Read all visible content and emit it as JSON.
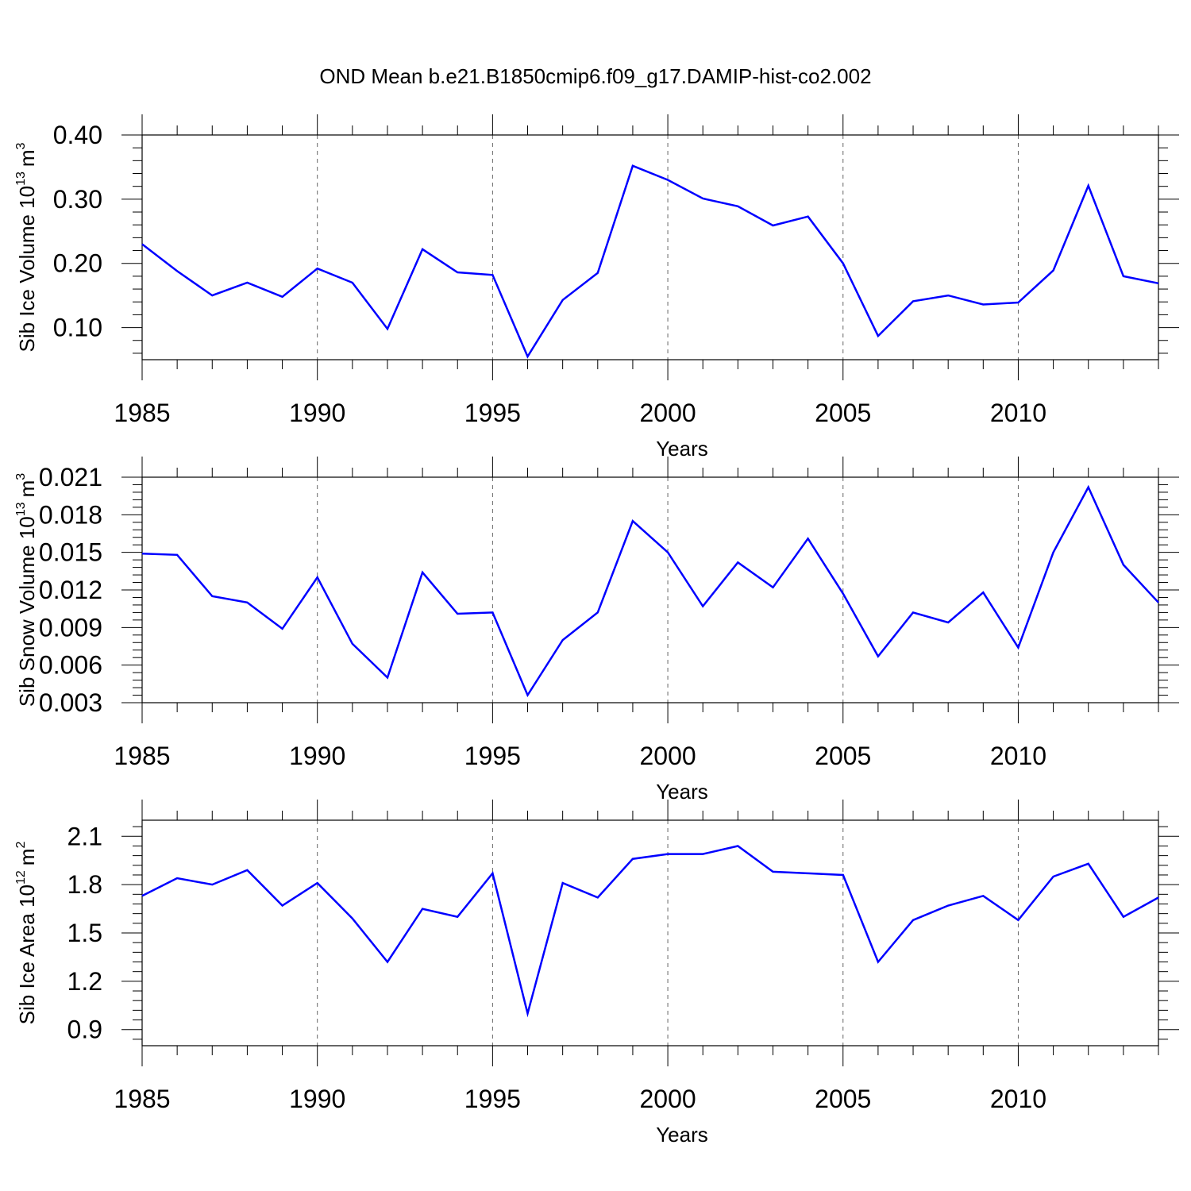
{
  "figure_title": "OND Mean b.e21.B1850cmip6.f09_g17.DAMIP-hist-co2.002",
  "chart_data": [
    {
      "type": "line",
      "title": "",
      "xlabel": "Years",
      "ylabel_text": "Sib Ice Volume 10",
      "ylabel_exp": "13",
      "ylabel_unit": "m",
      "ylabel_unit_exp": "3",
      "xlim": [
        1985,
        2014
      ],
      "ylim": [
        0.05,
        0.4
      ],
      "xticks": [
        1985,
        1990,
        1995,
        2000,
        2005,
        2010
      ],
      "xtick_labels": [
        "1985",
        "1990",
        "1995",
        "2000",
        "2005",
        "2010"
      ],
      "yticks": [
        0.1,
        0.2,
        0.3,
        0.4
      ],
      "ytick_labels": [
        "0.10",
        "0.20",
        "0.30",
        "0.40"
      ],
      "grid": "dashed vertical at major x ticks",
      "x": [
        1985,
        1986,
        1987,
        1988,
        1989,
        1990,
        1991,
        1992,
        1993,
        1994,
        1995,
        1996,
        1997,
        1998,
        1999,
        2000,
        2001,
        2002,
        2003,
        2004,
        2005,
        2006,
        2007,
        2008,
        2009,
        2010,
        2011,
        2012,
        2013,
        2014
      ],
      "series": [
        {
          "name": "Sib Ice Volume",
          "color": "#0000ff",
          "values": [
            0.23,
            0.188,
            0.15,
            0.17,
            0.148,
            0.192,
            0.17,
            0.098,
            0.222,
            0.186,
            0.182,
            0.055,
            0.143,
            0.185,
            0.352,
            0.33,
            0.301,
            0.289,
            0.259,
            0.273,
            0.2,
            0.087,
            0.141,
            0.15,
            0.136,
            0.139,
            0.189,
            0.321,
            0.18,
            0.169
          ]
        }
      ]
    },
    {
      "type": "line",
      "title": "",
      "xlabel": "Years",
      "ylabel_text": "Sib Snow Volume 10",
      "ylabel_exp": "13",
      "ylabel_unit": "m",
      "ylabel_unit_exp": "3",
      "xlim": [
        1985,
        2014
      ],
      "ylim": [
        0.003,
        0.021
      ],
      "xticks": [
        1985,
        1990,
        1995,
        2000,
        2005,
        2010
      ],
      "xtick_labels": [
        "1985",
        "1990",
        "1995",
        "2000",
        "2005",
        "2010"
      ],
      "yticks": [
        0.003,
        0.006,
        0.009,
        0.012,
        0.015,
        0.018,
        0.021
      ],
      "ytick_labels": [
        "0.003",
        "0.006",
        "0.009",
        "0.012",
        "0.015",
        "0.018",
        "0.021"
      ],
      "grid": "dashed vertical at major x ticks",
      "x": [
        1985,
        1986,
        1987,
        1988,
        1989,
        1990,
        1991,
        1992,
        1993,
        1994,
        1995,
        1996,
        1997,
        1998,
        1999,
        2000,
        2001,
        2002,
        2003,
        2004,
        2005,
        2006,
        2007,
        2008,
        2009,
        2010,
        2011,
        2012,
        2013,
        2014
      ],
      "series": [
        {
          "name": "Sib Snow Volume",
          "color": "#0000ff",
          "values": [
            0.0149,
            0.0148,
            0.0115,
            0.011,
            0.0089,
            0.013,
            0.0077,
            0.005,
            0.0134,
            0.0101,
            0.0102,
            0.0036,
            0.008,
            0.0102,
            0.0175,
            0.015,
            0.0107,
            0.0142,
            0.0122,
            0.0161,
            0.0117,
            0.0067,
            0.0102,
            0.0094,
            0.0118,
            0.0074,
            0.015,
            0.0202,
            0.014,
            0.011
          ]
        }
      ]
    },
    {
      "type": "line",
      "title": "",
      "xlabel": "Years",
      "ylabel_text": "Sib Ice Area 10",
      "ylabel_exp": "12",
      "ylabel_unit": "m",
      "ylabel_unit_exp": "2",
      "xlim": [
        1985,
        2014
      ],
      "ylim": [
        0.8,
        2.2
      ],
      "xticks": [
        1985,
        1990,
        1995,
        2000,
        2005,
        2010
      ],
      "xtick_labels": [
        "1985",
        "1990",
        "1995",
        "2000",
        "2005",
        "2010"
      ],
      "yticks": [
        0.9,
        1.2,
        1.5,
        1.8,
        2.1
      ],
      "ytick_labels": [
        "0.9",
        "1.2",
        "1.5",
        "1.8",
        "2.1"
      ],
      "grid": "dashed vertical at major x ticks",
      "x": [
        1985,
        1986,
        1987,
        1988,
        1989,
        1990,
        1991,
        1992,
        1993,
        1994,
        1995,
        1996,
        1997,
        1998,
        1999,
        2000,
        2001,
        2002,
        2003,
        2004,
        2005,
        2006,
        2007,
        2008,
        2009,
        2010,
        2011,
        2012,
        2013,
        2014
      ],
      "series": [
        {
          "name": "Sib Ice Area",
          "color": "#0000ff",
          "values": [
            1.73,
            1.84,
            1.8,
            1.89,
            1.67,
            1.81,
            1.59,
            1.32,
            1.65,
            1.6,
            1.87,
            1.0,
            1.81,
            1.72,
            1.96,
            1.99,
            1.99,
            2.04,
            1.88,
            1.87,
            1.86,
            1.32,
            1.58,
            1.67,
            1.73,
            1.58,
            1.85,
            1.93,
            1.6,
            1.72
          ]
        }
      ]
    }
  ]
}
